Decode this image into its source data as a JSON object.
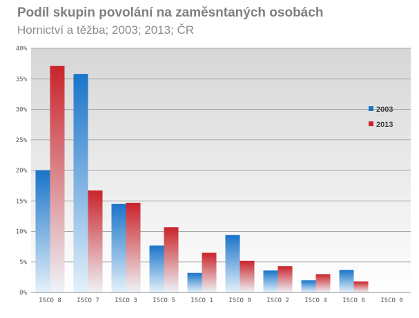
{
  "title": "Podíl skupin povolání na zaměsntaných osobách",
  "subtitle": "Hornictví a těžba; 2003; 2013; ČR",
  "chart_data": {
    "type": "bar",
    "categories": [
      "ISCO 8",
      "ISCO 7",
      "ISCO 3",
      "ISCO 5",
      "ISCO 1",
      "ISCO 9",
      "ISCO 2",
      "ISCO 4",
      "ISCO 6",
      "ISCO 0"
    ],
    "series": [
      {
        "name": "2003",
        "values": [
          20.0,
          35.8,
          14.5,
          7.7,
          3.2,
          9.4,
          3.6,
          2.0,
          3.7,
          0.0
        ]
      },
      {
        "name": "2013",
        "values": [
          37.1,
          16.7,
          14.7,
          10.7,
          6.5,
          5.2,
          4.3,
          3.0,
          1.8,
          0.0
        ]
      }
    ],
    "yticks": [
      "0%",
      "5%",
      "10%",
      "15%",
      "20%",
      "25%",
      "30%",
      "35%",
      "40%"
    ],
    "ylim": [
      0,
      40
    ],
    "legend_position": "right",
    "grid": true,
    "colors": {
      "2003_top": "#1a74c9",
      "2003_bottom": "#e4f1fa",
      "2013_top": "#c8242a",
      "2013_bottom": "#eef3f8",
      "plot_bg_top": "#d6d6d6",
      "plot_bg_bottom": "#ffffff",
      "grid": "#a6a6a6"
    }
  }
}
